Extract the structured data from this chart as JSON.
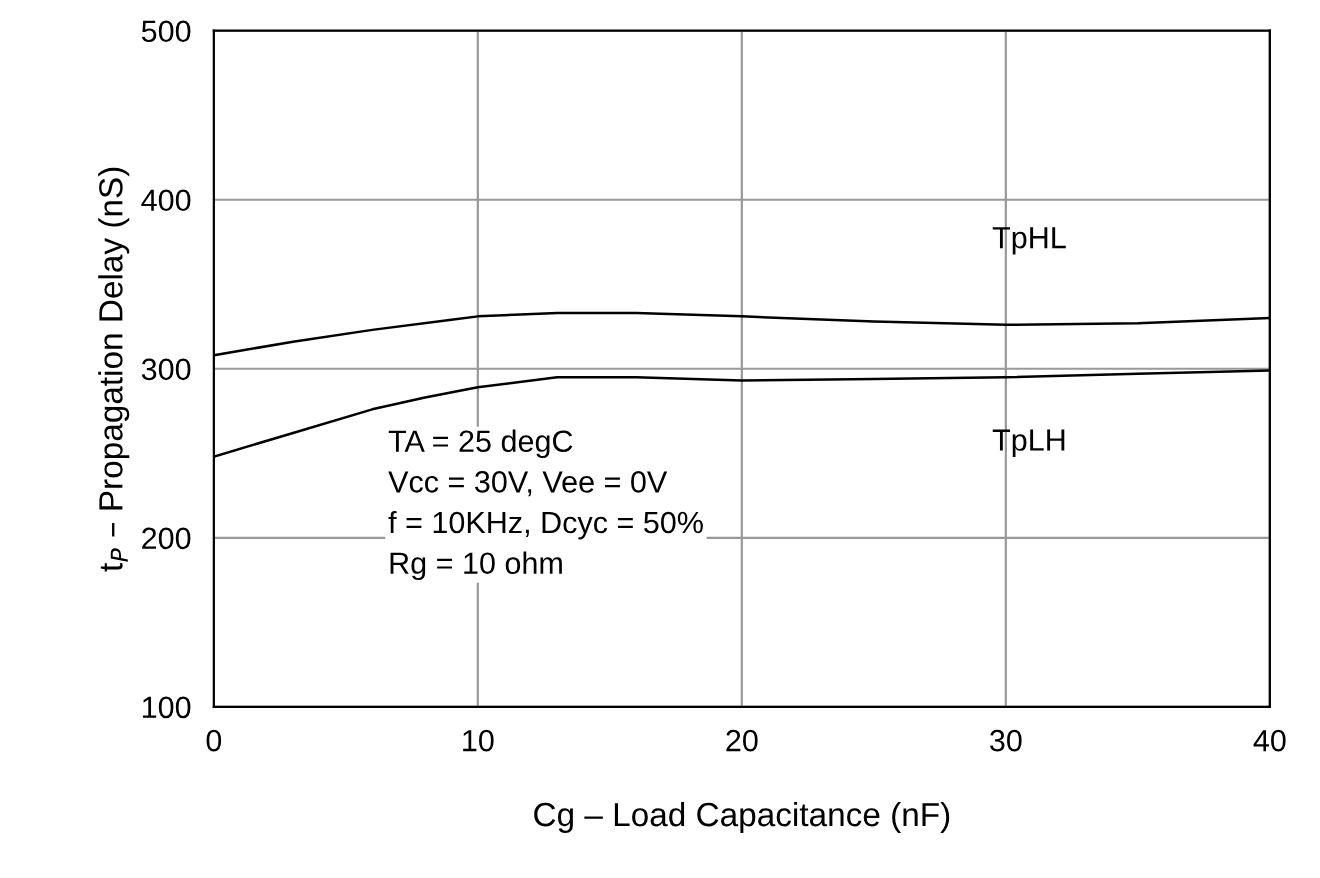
{
  "chart_data": {
    "type": "line",
    "xlabel": "Cg – Load Capacitance (nF)",
    "ylabel": "t$_{P}$ – Propagation Delay (nS)",
    "xlim": [
      0,
      40
    ],
    "xticks": [
      0,
      10,
      20,
      30,
      40
    ],
    "ylim": [
      100,
      500
    ],
    "yticks": [
      100,
      200,
      300,
      400,
      500
    ],
    "grid": true,
    "marker": "none",
    "line_style": "solid",
    "series": [
      {
        "name": "TpHL",
        "color": "#000000",
        "x": [
          0,
          3,
          6,
          9,
          10,
          13,
          16,
          20,
          25,
          30,
          35,
          40
        ],
        "values": [
          308,
          316,
          323,
          329,
          331,
          333,
          333,
          331,
          328,
          326,
          327,
          330
        ]
      },
      {
        "name": "TpLH",
        "color": "#000000",
        "x": [
          0,
          3,
          6,
          8,
          10,
          13,
          16,
          20,
          25,
          30,
          35,
          40
        ],
        "values": [
          248,
          262,
          276,
          283,
          289,
          295,
          295,
          293,
          294,
          295,
          297,
          299
        ]
      }
    ],
    "annotations": [
      "TA = 25 degC\nVcc = 30V, Vee = 0V\nf = 10KHz, Dcyc = 50%\nRg = 10 ohm"
    ]
  }
}
